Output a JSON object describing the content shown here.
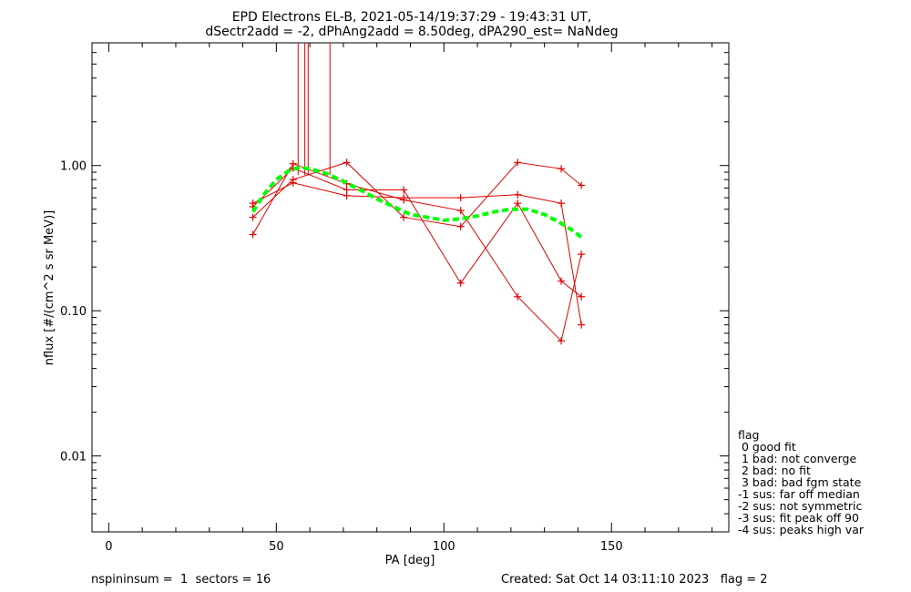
{
  "title": {
    "line1": "EPD Electrons EL-B, 2021-05-14/19:37:29 - 19:43:31 UT,",
    "line2": "dSectr2add = -2, dPhAng2add = 8.50deg, dPA290_est=   NaNdeg"
  },
  "footer": {
    "left": "nspininsum =  1  sectors = 16",
    "right": "Created: Sat Oct 14 03:11:10 2023   flag = 2"
  },
  "legend": {
    "title": "flag",
    "items": [
      " 0 good fit",
      " 1 bad: not converge",
      " 2 bad: no fit",
      " 3 bad: bad fgm state",
      "-1 sus: far off median",
      "-2 sus: not symmetric",
      "-3 sus: fit peak off 90",
      "-4 sus: peaks high var"
    ]
  },
  "chart_data": {
    "type": "line",
    "xlabel": "PA [deg]",
    "ylabel": "nflux [#/(cm^2 s sr MeV)]",
    "xlim": [
      -5,
      185
    ],
    "ylim": [
      0.003,
      7
    ],
    "yscale": "log",
    "xticks": [
      0,
      50,
      100,
      150
    ],
    "xtick_labels": [
      "0",
      "50",
      "100",
      "150"
    ],
    "yticks": [
      0.01,
      0.1,
      1.0
    ],
    "ytick_labels": [
      "0.01",
      "0.10",
      "1.00"
    ],
    "series_color": "#e00000",
    "fit_color": "#00ff00",
    "series": [
      {
        "x": [
          43,
          55,
          71,
          88,
          105,
          122,
          135,
          141
        ],
        "y": [
          0.55,
          0.76,
          0.62,
          0.6,
          0.6,
          0.63,
          0.55,
          0.08
        ]
      },
      {
        "x": [
          43,
          55,
          71,
          88,
          105,
          122,
          135,
          141
        ],
        "y": [
          0.52,
          0.96,
          0.68,
          0.68,
          0.155,
          0.55,
          0.16,
          0.125
        ]
      },
      {
        "x": [
          43,
          55,
          71,
          88,
          105,
          122,
          135,
          141
        ],
        "y": [
          0.335,
          1.03,
          0.75,
          0.58,
          0.49,
          0.125,
          0.062,
          0.245
        ]
      },
      {
        "x": [
          43,
          55,
          71,
          88,
          105,
          122,
          135,
          141
        ],
        "y": [
          0.44,
          0.8,
          1.05,
          0.44,
          0.38,
          1.05,
          0.95,
          0.73
        ]
      }
    ],
    "spikes_x": [
      56.5,
      58.5,
      59.5,
      66
    ],
    "fit": {
      "x": [
        43,
        46,
        50,
        54,
        57,
        60,
        65,
        70,
        75,
        80,
        85,
        90,
        95,
        100,
        105,
        110,
        115,
        120,
        125,
        130,
        135,
        139,
        141
      ],
      "y": [
        0.48,
        0.62,
        0.8,
        0.93,
        0.97,
        0.95,
        0.88,
        0.78,
        0.68,
        0.59,
        0.52,
        0.46,
        0.44,
        0.42,
        0.43,
        0.45,
        0.48,
        0.5,
        0.5,
        0.46,
        0.4,
        0.35,
        0.32
      ]
    }
  }
}
